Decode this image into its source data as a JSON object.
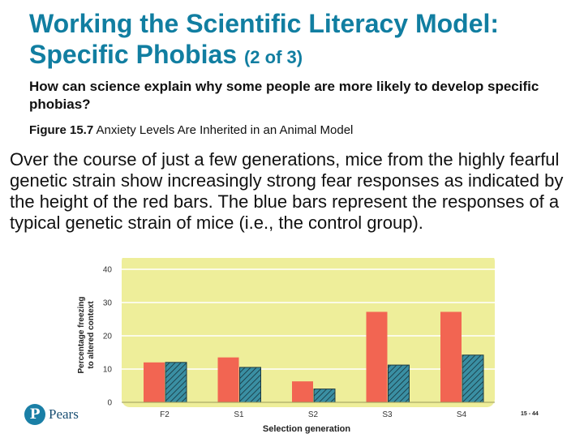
{
  "slide": {
    "title_main": "Working the Scientific Literacy Model: Specific Phobias",
    "title_sub": "(2 of 3)",
    "question": "How can science explain why some people are more likely to develop specific phobias?",
    "figure_label": "Figure 15.7",
    "figure_title": "Anxiety Levels Are Inherited in an Animal Model",
    "body": "Over the course of just a few generations, mice from the highly fearful genetic strain show increasingly strong fear responses as indicated by the height of the red bars. The blue bars represent the responses of a typical genetic strain of mice (i.e., the control group).",
    "logo_letter": "P",
    "logo_text": "Pears",
    "slide_number": "15 - 44"
  },
  "colors": {
    "title": "#117ea1",
    "plot_background": "#eeee9a",
    "fearful_bar": "#f26552",
    "control_bar": "#3a8fa3"
  },
  "chart_data": {
    "type": "bar",
    "categories": [
      "F2",
      "S1",
      "S2",
      "S3",
      "S4"
    ],
    "series": [
      {
        "values": [
          12,
          13.5,
          6.3,
          27.2,
          27.2
        ]
      },
      {
        "values": [
          12,
          10.5,
          4,
          11.2,
          14.2
        ]
      }
    ],
    "xlabel": "Selection generation",
    "ylabel": "Percentage freezing to altered context",
    "ylabel_lines": [
      "Percentage freezing",
      "to altered context"
    ],
    "ylim": [
      0,
      40
    ],
    "yticks": [
      0,
      10,
      20,
      30,
      40
    ],
    "grid": true
  }
}
